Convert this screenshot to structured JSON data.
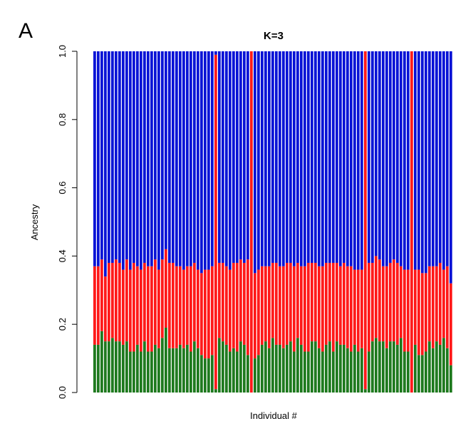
{
  "panel_label": "A",
  "chart_data": {
    "type": "bar",
    "stacked": true,
    "title": "K=3",
    "xlabel": "Individual #",
    "ylabel": "Ancestry",
    "ylim": [
      0,
      1
    ],
    "yticks": [
      "0.0",
      "0.2",
      "0.4",
      "0.6",
      "0.8",
      "1.0"
    ],
    "grid": false,
    "legend": "none",
    "series_colors": [
      "#1f7a1f",
      "#ff1a1a",
      "#0a14d6"
    ],
    "series": [
      {
        "values": [
          0.14,
          0.14,
          0.18,
          0.15,
          0.15,
          0.16,
          0.15,
          0.15,
          0.14,
          0.15,
          0.12,
          0.12,
          0.14,
          0.12,
          0.15,
          0.12,
          0.12,
          0.14,
          0.13,
          0.16,
          0.19,
          0.13,
          0.13,
          0.13,
          0.14,
          0.13,
          0.14,
          0.12,
          0.15,
          0.13,
          0.11,
          0.1,
          0.1,
          0.11,
          0.01,
          0.16,
          0.15,
          0.14,
          0.12,
          0.13,
          0.12,
          0.15,
          0.14,
          0.11,
          0.0,
          0.1,
          0.11,
          0.14,
          0.15,
          0.13,
          0.16,
          0.14,
          0.14,
          0.13,
          0.14,
          0.15,
          0.12,
          0.16,
          0.14,
          0.12,
          0.12,
          0.15,
          0.15,
          0.13,
          0.12,
          0.14,
          0.15,
          0.12,
          0.15,
          0.14,
          0.14,
          0.13,
          0.12,
          0.14,
          0.12,
          0.13,
          0.01,
          0.12,
          0.15,
          0.16,
          0.15,
          0.15,
          0.13,
          0.15,
          0.15,
          0.14,
          0.16,
          0.12,
          0.12,
          0.0,
          0.14,
          0.11,
          0.11,
          0.12,
          0.15,
          0.13,
          0.15,
          0.14,
          0.16,
          0.13,
          0.08
        ]
      },
      {
        "values": [
          0.23,
          0.23,
          0.21,
          0.19,
          0.23,
          0.22,
          0.24,
          0.23,
          0.22,
          0.24,
          0.24,
          0.26,
          0.23,
          0.24,
          0.23,
          0.25,
          0.25,
          0.25,
          0.23,
          0.23,
          0.23,
          0.25,
          0.25,
          0.24,
          0.23,
          0.23,
          0.23,
          0.25,
          0.23,
          0.23,
          0.24,
          0.26,
          0.26,
          0.26,
          0.98,
          0.22,
          0.23,
          0.23,
          0.24,
          0.25,
          0.26,
          0.24,
          0.24,
          0.28,
          1.0,
          0.25,
          0.25,
          0.23,
          0.22,
          0.24,
          0.22,
          0.24,
          0.23,
          0.24,
          0.24,
          0.23,
          0.25,
          0.22,
          0.23,
          0.25,
          0.26,
          0.23,
          0.23,
          0.24,
          0.25,
          0.24,
          0.23,
          0.26,
          0.23,
          0.23,
          0.24,
          0.24,
          0.25,
          0.22,
          0.24,
          0.23,
          0.99,
          0.26,
          0.23,
          0.24,
          0.24,
          0.22,
          0.24,
          0.23,
          0.24,
          0.24,
          0.21,
          0.24,
          0.24,
          1.0,
          0.22,
          0.25,
          0.24,
          0.23,
          0.22,
          0.24,
          0.22,
          0.24,
          0.2,
          0.24,
          0.24
        ]
      },
      {
        "values": [
          0.63,
          0.63,
          0.61,
          0.66,
          0.62,
          0.62,
          0.61,
          0.62,
          0.64,
          0.61,
          0.64,
          0.62,
          0.63,
          0.64,
          0.62,
          0.63,
          0.63,
          0.61,
          0.64,
          0.61,
          0.58,
          0.62,
          0.62,
          0.63,
          0.63,
          0.64,
          0.63,
          0.63,
          0.62,
          0.64,
          0.65,
          0.64,
          0.64,
          0.63,
          0.01,
          0.62,
          0.62,
          0.63,
          0.64,
          0.62,
          0.62,
          0.61,
          0.62,
          0.61,
          0.0,
          0.65,
          0.64,
          0.63,
          0.63,
          0.63,
          0.62,
          0.62,
          0.63,
          0.63,
          0.62,
          0.62,
          0.63,
          0.62,
          0.63,
          0.63,
          0.62,
          0.62,
          0.62,
          0.63,
          0.63,
          0.62,
          0.62,
          0.62,
          0.62,
          0.63,
          0.62,
          0.63,
          0.63,
          0.64,
          0.64,
          0.64,
          0.0,
          0.62,
          0.62,
          0.6,
          0.61,
          0.63,
          0.63,
          0.62,
          0.61,
          0.62,
          0.63,
          0.64,
          0.64,
          0.0,
          0.64,
          0.64,
          0.65,
          0.65,
          0.63,
          0.63,
          0.63,
          0.62,
          0.64,
          0.63,
          0.68
        ]
      }
    ]
  }
}
